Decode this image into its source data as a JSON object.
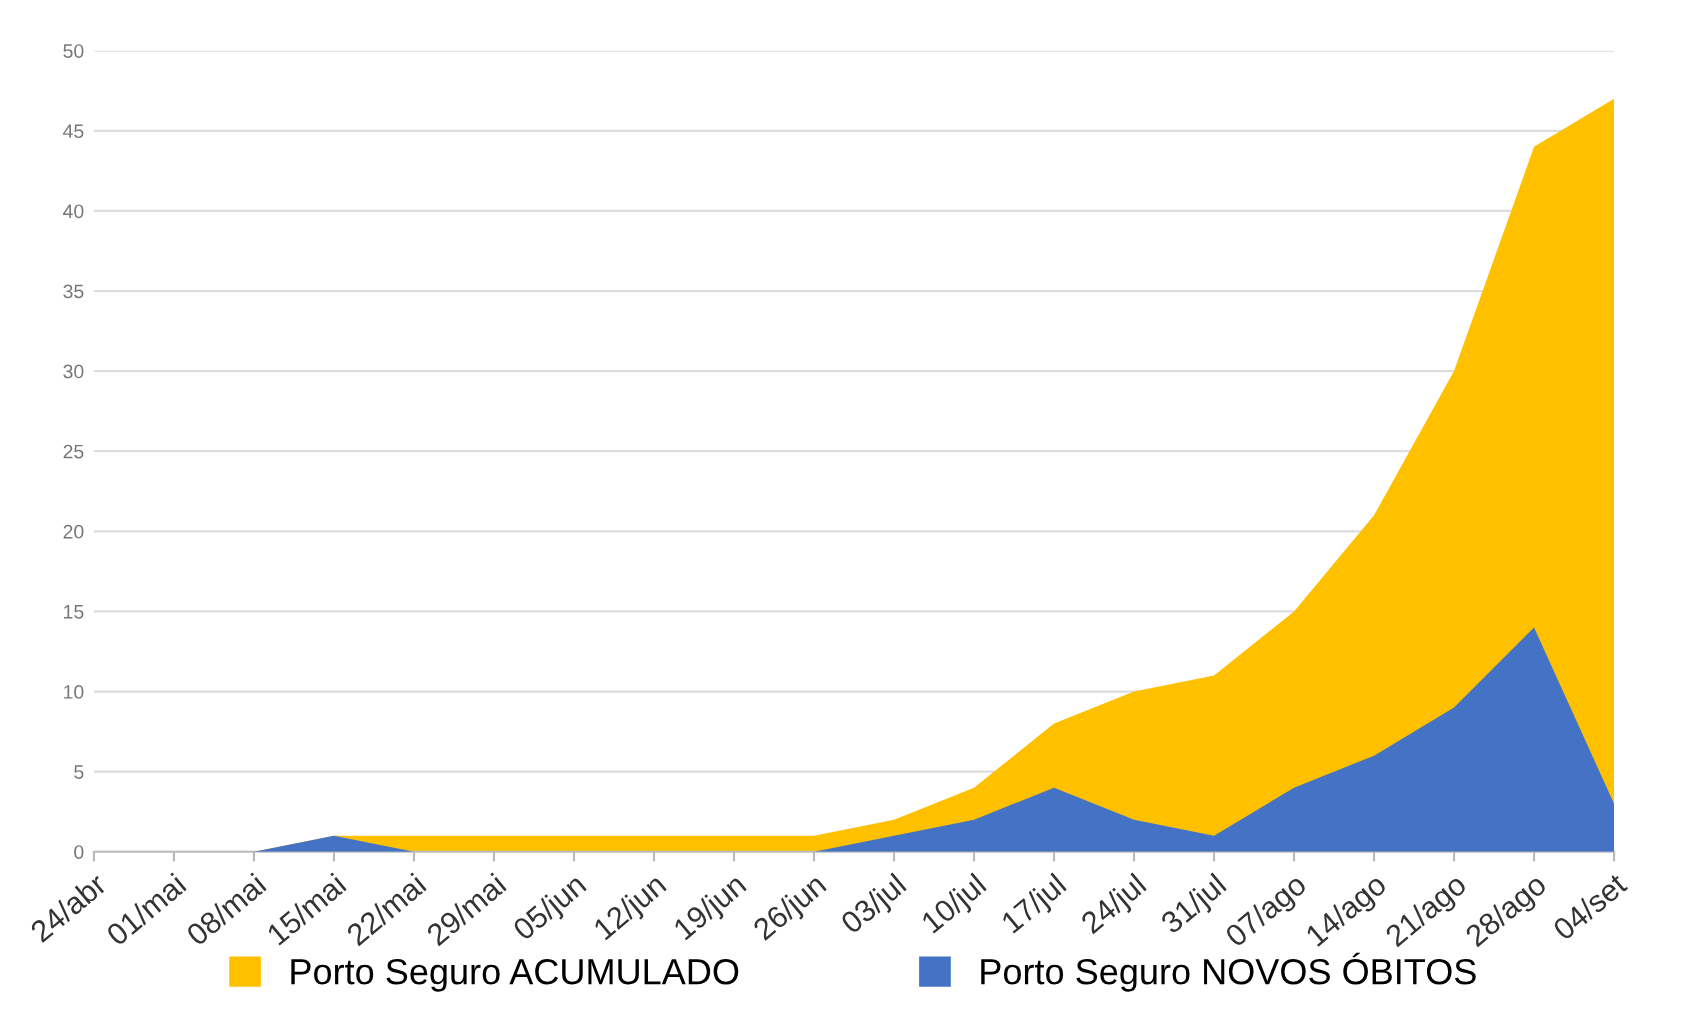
{
  "chart_data": {
    "type": "area",
    "categories": [
      "24/abr",
      "01/mai",
      "08/mai",
      "15/mai",
      "22/mai",
      "29/mai",
      "05/jun",
      "12/jun",
      "19/jun",
      "26/jun",
      "03/jul",
      "10/jul",
      "17/jul",
      "24/jul",
      "31/jul",
      "07/ago",
      "14/ago",
      "21/ago",
      "28/ago",
      "04/set"
    ],
    "series": [
      {
        "name": "Porto Seguro ACUMULADO",
        "color": "#ffc000",
        "values": [
          0,
          0,
          0,
          1,
          1,
          1,
          1,
          1,
          1,
          1,
          2,
          4,
          8,
          10,
          11,
          15,
          21,
          30,
          44,
          47
        ]
      },
      {
        "name": "Porto Seguro NOVOS ÓBITOS",
        "color": "#4472c4",
        "values": [
          0,
          0,
          0,
          1,
          0,
          0,
          0,
          0,
          0,
          0,
          1,
          2,
          4,
          2,
          1,
          4,
          6,
          9,
          14,
          3
        ]
      }
    ],
    "ylim": [
      0,
      50
    ],
    "yticks": [
      0,
      5,
      10,
      15,
      20,
      25,
      30,
      35,
      40,
      45,
      50
    ],
    "grid": "y",
    "legend": "bottom"
  }
}
